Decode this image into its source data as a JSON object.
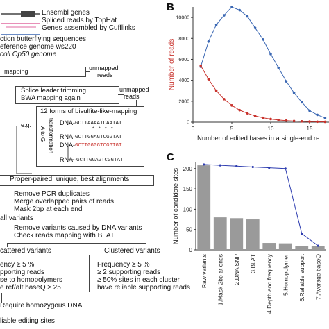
{
  "panel_a": {
    "legend": [
      "Ensembl genes",
      "Spliced reads by TopHat",
      "Genes assembled by Cufflinks"
    ],
    "extraction_lines": [
      "ction  butterflying sequences",
      "eference  genome ws220",
      "coli  Op50 genome"
    ],
    "mapping": "mapping",
    "unmapped_1": "unmapped",
    "reads_1": "reads",
    "splice_trim": "Splice leader trimming",
    "bwa": "BWA mapping again",
    "unmapped_2": "unmapped",
    "reads_2": "reads",
    "bisulfite_title": "12 forms of bisulfite-like-mapping",
    "eg": "e.g.",
    "atog": "A to G",
    "transformation": "transformation",
    "dna1_label": "DNA-",
    "dna1_seq": "GCTTAAAATCAATAT",
    "marks": "* *  * *",
    "rna1_label": "RNA-",
    "rna1_seq": "GCTTGGAGTCGGTAT",
    "dna2_label": "DNA-",
    "dna2_seq": "GCTTGGGGTCGGTGT",
    "rna2_label": "RNA -",
    "rna2_seq": "GCTTGGAGTCGGTAT",
    "proper": "Proper-paired,  unique,  best alignments",
    "pcr": "Remove PCR duplicates",
    "merge": "Merge overlapped pairs of reads",
    "mask": "Mask 2bp at each end",
    "all_variants": "all variants",
    "remove_dna": "Remove variants caused by DNA variants",
    "blat_check": "Check reads mapping with BLAT",
    "scattered": "cattered variants",
    "clustered": "Clustered variants",
    "sc_freq": "ency ≥ 5 %",
    "sc_support": "pporting reads",
    "sc_homo": "se to homopolymers",
    "sc_base": "e ref/alt baseQ ≥ 25",
    "cl_freq": "Frequency ≥ 5 %",
    "cl_reads": "≥ 2  supporting reads",
    "cl_sites": "≥ 50% sites in each cluster",
    "cl_reliable": "have reliable supporting reads",
    "homozygous": "Require homozygous DNA",
    "reliable": "liable editing sites"
  },
  "panel_b": {
    "letter": "B",
    "chart_data": {
      "type": "line",
      "xlabel": "Number of edited bases in a single-end re",
      "ylabel": "Number of reads",
      "xticks": [
        0,
        5,
        10,
        15
      ],
      "yticks": [
        0,
        2000,
        4000,
        6000,
        8000,
        10000
      ],
      "xlim": [
        0,
        17.5
      ],
      "ylim": [
        0,
        11000
      ],
      "series": [
        {
          "color": "#3a67b3",
          "x": [
            1,
            2,
            3,
            4,
            5,
            6,
            7,
            8,
            9,
            10,
            11,
            12,
            13,
            14,
            15,
            16,
            17
          ],
          "values": [
            5300,
            7700,
            9300,
            10200,
            11000,
            10700,
            10100,
            9000,
            7900,
            6500,
            5200,
            3900,
            2800,
            1900,
            1100,
            700,
            400
          ]
        },
        {
          "color": "#c8322c",
          "x": [
            1,
            2,
            3,
            4,
            5,
            6,
            7,
            8,
            9,
            10,
            11,
            12,
            13,
            14,
            15,
            16,
            17
          ],
          "values": [
            5400,
            4100,
            3000,
            2200,
            1600,
            1150,
            850,
            600,
            420,
            300,
            210,
            150,
            110,
            80,
            60,
            45,
            35
          ]
        }
      ]
    }
  },
  "panel_c": {
    "letter": "C",
    "chart_data": {
      "type": "bar",
      "ylabel": "Number of candidate sites",
      "categories": [
        "Raw variants",
        "1.Mask 2bp at ends",
        "2.DNA SNP",
        "3.BLAT",
        "4.Depth and frequency",
        "5.Homopolymer",
        "6.Reliable support",
        "7.Average baseQ"
      ],
      "values": [
        208,
        80,
        78,
        75,
        17,
        16,
        10,
        9
      ],
      "line_values": [
        210,
        208,
        206,
        204,
        202,
        200,
        40,
        10
      ],
      "line_color": "#2e3db0",
      "bar_color": "#9a9a9a",
      "yticks": [
        0,
        50,
        100,
        150,
        200
      ],
      "ylim": [
        0,
        215
      ]
    }
  }
}
